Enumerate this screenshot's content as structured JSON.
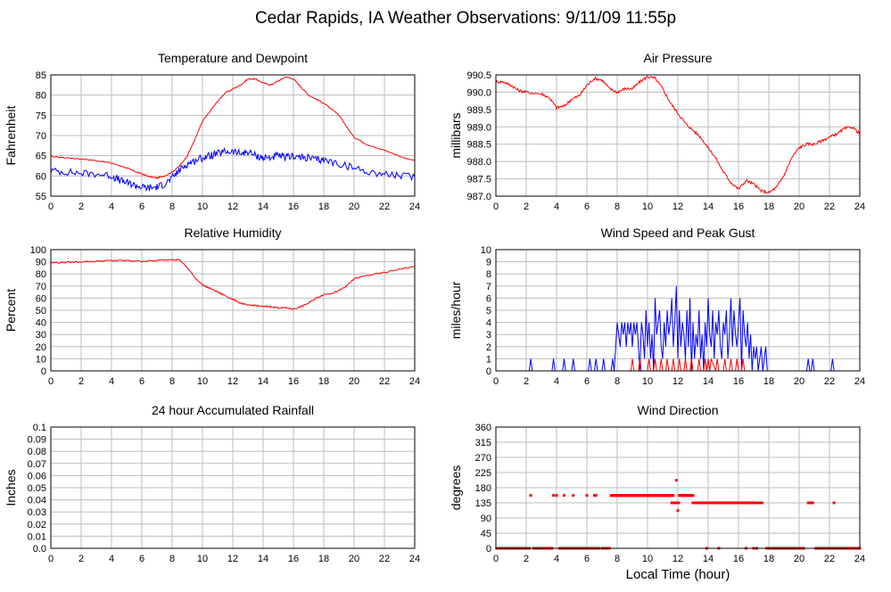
{
  "page_title": "Cedar Rapids, IA Weather Observations: 9/11/09 11:55p",
  "x_axis_label": "Local Time (hour)",
  "colors": {
    "red": "#ff0000",
    "blue": "#0000ff",
    "grid": "#bdbdbd",
    "frame": "#000000"
  },
  "chart_data": [
    {
      "id": "temp",
      "type": "line",
      "title": "Temperature and Dewpoint",
      "ylabel": "Fahrenheit",
      "xlim": [
        0,
        24
      ],
      "ylim": [
        55,
        85
      ],
      "xticks": [
        0,
        2,
        4,
        6,
        8,
        10,
        12,
        14,
        16,
        18,
        20,
        22,
        24
      ],
      "yticks": [
        55,
        60,
        65,
        70,
        75,
        80,
        85
      ],
      "series": [
        {
          "color": "red",
          "jitter": 0.15,
          "x": [
            0,
            1,
            2,
            3,
            4,
            5,
            5.5,
            6,
            6.5,
            7,
            7.5,
            8,
            8.5,
            9,
            9.5,
            10,
            10.5,
            11,
            11.5,
            12,
            12.5,
            13,
            13.5,
            14,
            14.5,
            15,
            15.5,
            16,
            16.5,
            17,
            17.5,
            18,
            19,
            20,
            21,
            22,
            23,
            24
          ],
          "y": [
            64.8,
            64.5,
            64.2,
            63.8,
            63.2,
            62,
            61.2,
            60.5,
            59.8,
            59.5,
            60,
            61,
            62.5,
            65,
            69,
            73.5,
            76,
            78.5,
            80.5,
            81.5,
            82.5,
            84,
            84,
            83,
            82.5,
            83.5,
            84.5,
            84,
            82,
            80,
            79,
            78,
            75,
            69.5,
            67.5,
            66.5,
            64.8,
            63.8
          ]
        },
        {
          "color": "blue",
          "jitter": 0.9,
          "x": [
            0,
            1,
            2,
            3,
            4,
            4.5,
            5,
            5.5,
            6,
            6.5,
            7,
            7.5,
            8,
            8.5,
            9,
            9.5,
            10,
            10.5,
            11,
            11.5,
            12,
            12.5,
            13,
            13.5,
            14,
            14.5,
            15,
            15.5,
            16,
            16.5,
            17,
            17.5,
            18,
            19,
            20,
            21,
            22,
            23,
            24
          ],
          "y": [
            61.3,
            61,
            60.7,
            60.5,
            60,
            59,
            58.3,
            57.8,
            57.2,
            57,
            57.3,
            58,
            59.5,
            61.5,
            63,
            63.8,
            64.5,
            65,
            65.5,
            66,
            66,
            65.5,
            66,
            65,
            64.5,
            64.5,
            65,
            64.5,
            65,
            64.5,
            64.5,
            64,
            64,
            63,
            62,
            61,
            60.5,
            60,
            59.8
          ]
        }
      ]
    },
    {
      "id": "pressure",
      "type": "line",
      "title": "Air Pressure",
      "ylabel": "millibars",
      "xlim": [
        0,
        24
      ],
      "ylim": [
        987.0,
        990.5
      ],
      "xticks": [
        0,
        2,
        4,
        6,
        8,
        10,
        12,
        14,
        16,
        18,
        20,
        22,
        24
      ],
      "yticks": [
        987.0,
        987.5,
        988.0,
        988.5,
        989.0,
        989.5,
        990.0,
        990.5
      ],
      "yformat": 1,
      "series": [
        {
          "color": "red",
          "jitter": 0.04,
          "x": [
            0,
            0.5,
            1,
            1.5,
            2,
            3,
            3.5,
            4,
            4.5,
            5,
            5.5,
            6,
            6.5,
            7,
            7.5,
            8,
            8.5,
            9,
            9.5,
            10,
            10.5,
            11,
            11.5,
            12,
            12.5,
            13,
            13.5,
            14,
            14.5,
            15,
            15.5,
            16,
            16.5,
            17,
            17.5,
            18,
            18.5,
            19,
            19.5,
            20,
            20.5,
            21,
            21.5,
            22,
            22.5,
            23,
            23.5,
            24
          ],
          "y": [
            990.3,
            990.3,
            990.2,
            990.05,
            990.0,
            989.95,
            989.85,
            989.55,
            989.6,
            989.8,
            989.9,
            990.2,
            990.4,
            990.35,
            990.1,
            990.0,
            990.1,
            990.1,
            990.3,
            990.45,
            990.4,
            990.1,
            989.7,
            989.4,
            989.1,
            988.9,
            988.7,
            988.4,
            988.1,
            987.7,
            987.4,
            987.2,
            987.45,
            987.35,
            987.15,
            987.1,
            987.25,
            987.6,
            988.1,
            988.4,
            988.5,
            988.5,
            988.6,
            988.7,
            988.8,
            988.95,
            989.0,
            988.8
          ]
        }
      ]
    },
    {
      "id": "humidity",
      "type": "line",
      "title": "Relative Humidity",
      "ylabel": "Percent",
      "xlim": [
        0,
        24
      ],
      "ylim": [
        0,
        100
      ],
      "xticks": [
        0,
        2,
        4,
        6,
        8,
        10,
        12,
        14,
        16,
        18,
        20,
        22,
        24
      ],
      "yticks": [
        0,
        10,
        20,
        30,
        40,
        50,
        60,
        70,
        80,
        90,
        100
      ],
      "series": [
        {
          "color": "red",
          "jitter": 0.6,
          "x": [
            0,
            1,
            2,
            3,
            4,
            5,
            6,
            7,
            8,
            8.5,
            9,
            9.5,
            10,
            10.5,
            11,
            11.5,
            12,
            12.5,
            13,
            13.5,
            14,
            14.5,
            15,
            15.5,
            16,
            16.5,
            17,
            17.5,
            18,
            18.5,
            19,
            19.5,
            20,
            21,
            22,
            23,
            24
          ],
          "y": [
            89,
            89.5,
            90,
            90.5,
            91,
            91,
            90.5,
            91,
            92,
            91.5,
            85,
            77,
            71,
            68,
            65,
            62,
            59,
            56,
            54,
            54,
            53,
            53,
            52,
            52,
            51,
            53,
            56,
            60,
            63,
            64,
            66,
            70,
            76,
            79,
            81,
            84,
            86
          ]
        }
      ]
    },
    {
      "id": "wind",
      "type": "line",
      "title": "Wind Speed and Peak Gust",
      "ylabel": "miles/hour",
      "xlim": [
        0,
        24
      ],
      "ylim": [
        0,
        10
      ],
      "xticks": [
        0,
        2,
        4,
        6,
        8,
        10,
        12,
        14,
        16,
        18,
        20,
        22,
        24
      ],
      "yticks": [
        0,
        1,
        2,
        3,
        4,
        5,
        6,
        7,
        8,
        9,
        10
      ],
      "series": [
        {
          "color": "blue",
          "x": [
            0,
            2.2,
            2.3,
            2.4,
            3.7,
            3.8,
            3.9,
            4.4,
            4.5,
            4.6,
            5.0,
            5.1,
            5.2,
            6.1,
            6.2,
            6.3,
            6.5,
            6.6,
            6.7,
            7.0,
            7.1,
            7.2,
            7.6,
            7.7,
            7.8,
            7.9,
            8.0,
            8.1,
            8.2,
            8.3,
            8.4,
            8.5,
            8.6,
            8.7,
            8.8,
            8.9,
            9.0,
            9.1,
            9.2,
            9.3,
            9.4,
            9.5,
            9.6,
            9.7,
            9.8,
            9.9,
            10.0,
            10.1,
            10.2,
            10.3,
            10.4,
            10.5,
            10.6,
            10.7,
            10.8,
            10.9,
            11.0,
            11.1,
            11.2,
            11.3,
            11.4,
            11.5,
            11.6,
            11.7,
            11.8,
            11.9,
            12.0,
            12.1,
            12.2,
            12.3,
            12.4,
            12.5,
            12.6,
            12.7,
            12.8,
            12.9,
            13.0,
            13.1,
            13.2,
            13.3,
            13.4,
            13.5,
            13.6,
            13.7,
            13.8,
            13.9,
            14.0,
            14.1,
            14.2,
            14.3,
            14.4,
            14.5,
            14.6,
            14.7,
            14.8,
            14.9,
            15.0,
            15.1,
            15.2,
            15.3,
            15.4,
            15.5,
            15.6,
            15.7,
            15.8,
            15.9,
            16.0,
            16.1,
            16.2,
            16.3,
            16.4,
            16.5,
            16.6,
            16.7,
            16.8,
            16.9,
            17.0,
            17.1,
            17.2,
            17.3,
            17.4,
            17.5,
            17.6,
            17.7,
            17.8,
            17.9,
            20.5,
            20.6,
            20.7,
            20.8,
            20.9,
            21.0,
            22.1,
            22.2,
            22.3,
            24
          ],
          "y": [
            0,
            0,
            1,
            0,
            0,
            1,
            0,
            0,
            1,
            0,
            0,
            1,
            0,
            0,
            1,
            0,
            0,
            1,
            0,
            0,
            1,
            0,
            0,
            1,
            0,
            2,
            4,
            3,
            2,
            4,
            3,
            4,
            2,
            4,
            3,
            4,
            2,
            4,
            3,
            4,
            2,
            0,
            4,
            3,
            1,
            5,
            2,
            4,
            1,
            3,
            0,
            6,
            3,
            4,
            5,
            2,
            1,
            4,
            2,
            5,
            3,
            4,
            6,
            2,
            4,
            7,
            1,
            5,
            2,
            4,
            3,
            1,
            5,
            2,
            6,
            0,
            4,
            1,
            3,
            2,
            5,
            1,
            3,
            0,
            4,
            2,
            6,
            3,
            2,
            5,
            1,
            4,
            3,
            5,
            2,
            1,
            4,
            3,
            5,
            1,
            3,
            6,
            2,
            5,
            3,
            2,
            4,
            6,
            0,
            5,
            3,
            2,
            4,
            1,
            3,
            0,
            2,
            1,
            2,
            0,
            1,
            2,
            0,
            1,
            2,
            0,
            0,
            1,
            0,
            0,
            1,
            0,
            0,
            1,
            0,
            0
          ]
        },
        {
          "color": "red",
          "x": [
            0,
            8.9,
            9.0,
            9.1,
            9.4,
            9.5,
            9.6,
            10.0,
            10.1,
            10.2,
            10.4,
            10.5,
            10.6,
            10.8,
            10.9,
            11.0,
            11.2,
            11.3,
            11.4,
            11.6,
            11.7,
            11.8,
            12.0,
            12.1,
            12.2,
            12.4,
            12.5,
            12.6,
            12.8,
            12.9,
            13.0,
            13.3,
            13.4,
            13.5,
            13.7,
            13.8,
            13.9,
            14.0,
            14.1,
            14.2,
            14.5,
            14.6,
            14.7,
            15.0,
            15.1,
            15.2,
            15.4,
            15.5,
            15.6,
            15.8,
            15.9,
            16.0,
            16.2,
            16.3,
            16.4,
            24
          ],
          "y": [
            0,
            0,
            1,
            0,
            0,
            1,
            0,
            0,
            1,
            0,
            0,
            1,
            0,
            0,
            1,
            0,
            0,
            1,
            0,
            0,
            1,
            0,
            0,
            1,
            0,
            0,
            1,
            0,
            0,
            1,
            0,
            0,
            1,
            0,
            0,
            1,
            0,
            1,
            0,
            1,
            0,
            1,
            0,
            0,
            1,
            0,
            0,
            1,
            0,
            0,
            1,
            0,
            0,
            1,
            0,
            0
          ]
        }
      ]
    },
    {
      "id": "rain",
      "type": "line",
      "title": "24 hour Accumulated Rainfall",
      "ylabel": "Inches",
      "xlim": [
        0,
        24
      ],
      "ylim": [
        0,
        0.1
      ],
      "xticks": [
        0,
        2,
        4,
        6,
        8,
        10,
        12,
        14,
        16,
        18,
        20,
        22,
        24
      ],
      "yticks": [
        0.0,
        0.01,
        0.02,
        0.03,
        0.04,
        0.05,
        0.06,
        0.07,
        0.08,
        0.09,
        0.1
      ],
      "ytick_labels": [
        "0.0",
        "0.01",
        "0.02",
        "0.03",
        "0.04",
        "0.05",
        "0.06",
        "0.07",
        "0.08",
        "0.09",
        "0.1"
      ],
      "series": [
        {
          "color": "red",
          "x": [
            0,
            24
          ],
          "y": [
            0,
            0
          ]
        }
      ]
    },
    {
      "id": "direction",
      "type": "scatter",
      "title": "Wind Direction",
      "ylabel": "degrees",
      "xlim": [
        0,
        24
      ],
      "ylim": [
        0,
        360
      ],
      "xticks": [
        0,
        2,
        4,
        6,
        8,
        10,
        12,
        14,
        16,
        18,
        20,
        22,
        24
      ],
      "yticks": [
        0,
        45,
        90,
        135,
        180,
        225,
        270,
        315,
        360
      ],
      "points": [
        {
          "x0": 0.05,
          "x1": 2.25,
          "y": 0,
          "step": 0.06
        },
        {
          "x0": 2.5,
          "x1": 3.7,
          "y": 0,
          "step": 0.06
        },
        {
          "x0": 4.2,
          "x1": 6.8,
          "y": 0,
          "step": 0.06
        },
        {
          "x0": 7.0,
          "x1": 7.5,
          "y": 0,
          "step": 0.06
        },
        {
          "x0": 7.65,
          "x1": 11.7,
          "y": 157,
          "step": 0.04
        },
        {
          "x0": 12.1,
          "x1": 13.0,
          "y": 157,
          "step": 0.05
        },
        {
          "x0": 13.0,
          "x1": 17.3,
          "y": 135,
          "step": 0.04
        },
        {
          "x0": 17.85,
          "x1": 20.3,
          "y": 0,
          "step": 0.05
        },
        {
          "x0": 21.1,
          "x1": 24.0,
          "y": 0,
          "step": 0.05
        },
        {
          "x": [
            2.3,
            3.8,
            4.0,
            4.5,
            5.1,
            6.0,
            6.5,
            6.6,
            7.6
          ],
          "y": [
            157,
            157,
            157,
            157,
            157,
            157,
            157,
            157,
            157
          ]
        },
        {
          "x": [
            11.6,
            11.75,
            11.85,
            11.9,
            11.95,
            12.0,
            12.05
          ],
          "y": [
            135,
            135,
            135,
            202,
            135,
            112,
            135
          ]
        },
        {
          "x": [
            13.9,
            14.7,
            16.5,
            17.0,
            17.45,
            17.55,
            20.6,
            20.75,
            20.9,
            22.3
          ],
          "y": [
            0,
            0,
            0,
            0,
            135,
            135,
            135,
            135,
            135,
            135
          ]
        },
        {
          "x": [
            17.0,
            17.2
          ],
          "y": [
            0,
            0
          ]
        }
      ]
    }
  ]
}
